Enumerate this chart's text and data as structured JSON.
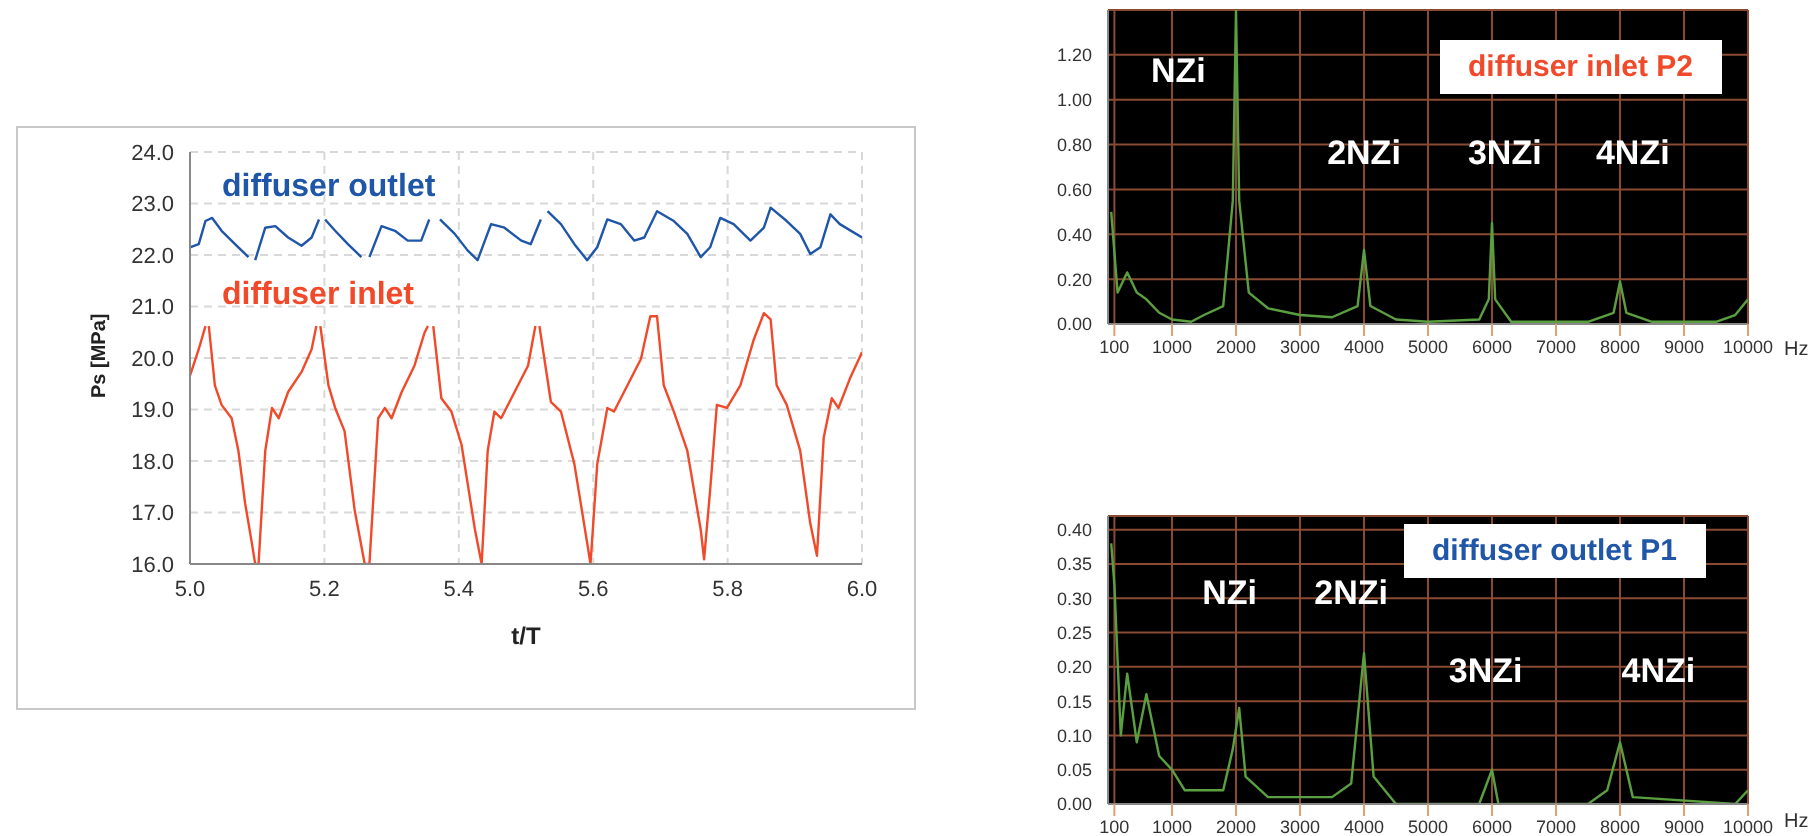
{
  "chart_data": [
    {
      "type": "line",
      "xlabel": "t/T",
      "ylabel": "Ps [MPa]",
      "xlim": [
        5.0,
        6.0
      ],
      "ylim": [
        16,
        24
      ],
      "grid": true,
      "legend": false,
      "marker": "none",
      "line_style": "solid",
      "xticks": [
        {
          "value": 5.0,
          "label": "5.0"
        },
        {
          "value": 5.2,
          "label": "5.2"
        },
        {
          "value": 5.4,
          "label": "5.4"
        },
        {
          "value": 5.6,
          "label": "5.6"
        },
        {
          "value": 5.8,
          "label": "5.8"
        },
        {
          "value": 6.0,
          "label": "6.0"
        }
      ],
      "yticks": [
        {
          "value": 16,
          "label": "16.0"
        },
        {
          "value": 17,
          "label": "17.0"
        },
        {
          "value": 18,
          "label": "18.0"
        },
        {
          "value": 19,
          "label": "19.0"
        },
        {
          "value": 20,
          "label": "20.0"
        },
        {
          "value": 21,
          "label": "21.0"
        },
        {
          "value": 22,
          "label": "22.0"
        },
        {
          "value": 23,
          "label": "23.0"
        },
        {
          "value": 24,
          "label": "24.0"
        }
      ],
      "series": [
        {
          "name": "diffuser outlet",
          "color": "#1f56a8",
          "x": [
            5.0,
            5.013,
            5.023,
            5.033,
            5.047,
            5.067,
            5.087,
            5.092,
            5.097,
            5.112,
            5.127,
            5.146,
            5.166,
            5.181,
            5.192,
            5.196,
            5.201,
            5.216,
            5.235,
            5.255,
            5.261,
            5.267,
            5.285,
            5.305,
            5.324,
            5.344,
            5.356,
            5.364,
            5.372,
            5.394,
            5.413,
            5.428,
            5.448,
            5.468,
            5.493,
            5.507,
            5.522,
            5.527,
            5.532,
            5.552,
            5.572,
            5.591,
            5.606,
            5.621,
            5.641,
            5.661,
            5.676,
            5.695,
            5.72,
            5.74,
            5.76,
            5.774,
            5.789,
            5.809,
            5.834,
            5.854,
            5.864,
            5.888,
            5.908,
            5.923,
            5.938,
            5.953,
            5.967,
            6.0
          ],
          "values": [
            22.15,
            22.21,
            22.66,
            22.72,
            22.47,
            22.21,
            21.96,
            null,
            21.9,
            22.53,
            22.56,
            22.34,
            22.18,
            22.34,
            22.69,
            null,
            22.69,
            22.47,
            22.21,
            21.96,
            null,
            21.96,
            22.56,
            22.47,
            22.28,
            22.28,
            22.69,
            null,
            22.69,
            22.41,
            22.09,
            21.9,
            22.6,
            22.53,
            22.28,
            22.21,
            22.69,
            null,
            22.85,
            22.6,
            22.21,
            21.9,
            22.15,
            22.69,
            22.6,
            22.28,
            22.34,
            22.85,
            22.66,
            22.41,
            21.96,
            22.15,
            22.72,
            22.6,
            22.28,
            22.53,
            22.92,
            22.66,
            22.41,
            22.02,
            22.15,
            22.79,
            22.6,
            22.34
          ]
        },
        {
          "name": "diffuser inlet",
          "color": "#f04a2a",
          "x": [
            5.0,
            5.013,
            5.023,
            5.025,
            5.028,
            5.037,
            5.047,
            5.062,
            5.072,
            5.082,
            5.092,
            5.097,
            5.102,
            5.112,
            5.122,
            5.132,
            5.146,
            5.166,
            5.181,
            5.188,
            5.191,
            5.194,
            5.206,
            5.216,
            5.23,
            5.245,
            5.26,
            5.267,
            5.28,
            5.29,
            5.3,
            5.315,
            5.334,
            5.349,
            5.354,
            5.358,
            5.362,
            5.374,
            5.389,
            5.404,
            5.424,
            5.434,
            5.443,
            5.453,
            5.463,
            5.483,
            5.503,
            5.514,
            5.517,
            5.52,
            5.537,
            5.552,
            5.572,
            5.591,
            5.596,
            5.606,
            5.621,
            5.631,
            5.651,
            5.671,
            5.685,
            5.695,
            5.705,
            5.72,
            5.74,
            5.76,
            5.765,
            5.774,
            5.784,
            5.799,
            5.819,
            5.839,
            5.854,
            5.864,
            5.873,
            5.888,
            5.908,
            5.923,
            5.933,
            5.943,
            5.955,
            5.965,
            5.982,
            6.0
          ],
          "values": [
            19.66,
            20.17,
            20.62,
            null,
            20.62,
            19.47,
            19.09,
            18.83,
            18.2,
            17.18,
            16.41,
            16.0,
            16.0,
            18.2,
            19.03,
            18.83,
            19.34,
            19.73,
            20.17,
            20.62,
            null,
            20.62,
            19.47,
            19.03,
            18.58,
            17.05,
            16.0,
            16.0,
            18.83,
            19.03,
            18.83,
            19.34,
            19.85,
            20.49,
            20.62,
            null,
            20.62,
            19.22,
            18.96,
            18.32,
            16.67,
            16.0,
            18.2,
            18.96,
            18.83,
            19.34,
            19.85,
            20.62,
            null,
            20.62,
            19.15,
            18.96,
            17.94,
            16.41,
            16.0,
            17.94,
            19.03,
            18.96,
            19.47,
            19.98,
            20.81,
            20.81,
            19.47,
            18.96,
            18.2,
            16.67,
            16.09,
            17.43,
            19.09,
            19.03,
            19.47,
            20.36,
            20.87,
            20.75,
            19.47,
            19.09,
            18.2,
            16.79,
            16.16,
            18.45,
            19.22,
            19.03,
            19.6,
            20.11
          ]
        }
      ]
    },
    {
      "type": "line",
      "title": "diffuser inlet P2",
      "xlabel": "Hz",
      "xlim": [
        0,
        10000
      ],
      "ylim": [
        0,
        1.4
      ],
      "grid": true,
      "legend": false,
      "marker": "none",
      "line_style": "solid",
      "xticks": [
        100,
        1000,
        2000,
        3000,
        4000,
        5000,
        6000,
        7000,
        8000,
        9000,
        10000
      ],
      "yticks": [
        {
          "value": 0,
          "label": "0.00"
        },
        {
          "value": 0.2,
          "label": "0.20"
        },
        {
          "value": 0.4,
          "label": "0.40"
        },
        {
          "value": 0.6,
          "label": "0.60"
        },
        {
          "value": 0.8,
          "label": "0.80"
        },
        {
          "value": 1.0,
          "label": "1.00"
        },
        {
          "value": 1.2,
          "label": "1.20"
        }
      ],
      "annotations": [
        "NZi",
        "2NZi",
        "3NZi",
        "4NZi"
      ],
      "series": [
        {
          "color": "#5aa040",
          "x": [
            50,
            150,
            300,
            450,
            600,
            800,
            1000,
            1300,
            1500,
            1800,
            1950,
            2000,
            2050,
            2200,
            2500,
            3000,
            3500,
            3900,
            4000,
            4100,
            4500,
            5000,
            5800,
            5950,
            6000,
            6050,
            6300,
            7500,
            7900,
            8000,
            8100,
            8500,
            9500,
            9800,
            10000
          ],
          "values": [
            0.5,
            0.14,
            0.23,
            0.14,
            0.11,
            0.05,
            0.02,
            0.01,
            0.04,
            0.08,
            0.55,
            1.4,
            0.55,
            0.14,
            0.07,
            0.04,
            0.03,
            0.08,
            0.33,
            0.08,
            0.02,
            0.01,
            0.02,
            0.11,
            0.45,
            0.11,
            0.01,
            0.01,
            0.05,
            0.19,
            0.05,
            0.01,
            0.01,
            0.04,
            0.11
          ]
        }
      ]
    },
    {
      "type": "line",
      "title": "diffuser outlet P1",
      "xlabel": "Hz",
      "xlim": [
        0,
        10000
      ],
      "ylim": [
        0,
        0.42
      ],
      "grid": true,
      "legend": false,
      "marker": "none",
      "line_style": "solid",
      "xticks": [
        100,
        1000,
        2000,
        3000,
        4000,
        5000,
        6000,
        7000,
        8000,
        9000,
        10000
      ],
      "yticks": [
        {
          "value": 0,
          "label": "0.00"
        },
        {
          "value": 0.05,
          "label": "0.05"
        },
        {
          "value": 0.1,
          "label": "0.10"
        },
        {
          "value": 0.15,
          "label": "0.15"
        },
        {
          "value": 0.2,
          "label": "0.20"
        },
        {
          "value": 0.25,
          "label": "0.25"
        },
        {
          "value": 0.3,
          "label": "0.30"
        },
        {
          "value": 0.35,
          "label": "0.35"
        },
        {
          "value": 0.4,
          "label": "0.40"
        }
      ],
      "annotations": [
        "NZi",
        "2NZi",
        "3NZi",
        "4NZi"
      ],
      "series": [
        {
          "color": "#5aa040",
          "x": [
            50,
            100,
            200,
            300,
            450,
            600,
            800,
            1000,
            1200,
            1500,
            1800,
            1950,
            2050,
            2150,
            2500,
            3000,
            3500,
            3800,
            4000,
            4150,
            4500,
            5800,
            6000,
            6100,
            7500,
            7800,
            8000,
            8200,
            9800,
            10000
          ],
          "values": [
            0.38,
            0.32,
            0.1,
            0.19,
            0.09,
            0.16,
            0.07,
            0.05,
            0.02,
            0.02,
            0.02,
            0.08,
            0.14,
            0.04,
            0.01,
            0.01,
            0.01,
            0.03,
            0.22,
            0.04,
            0.0,
            0.0,
            0.05,
            0.0,
            0.0,
            0.02,
            0.09,
            0.01,
            0.0,
            0.02
          ]
        }
      ]
    }
  ]
}
